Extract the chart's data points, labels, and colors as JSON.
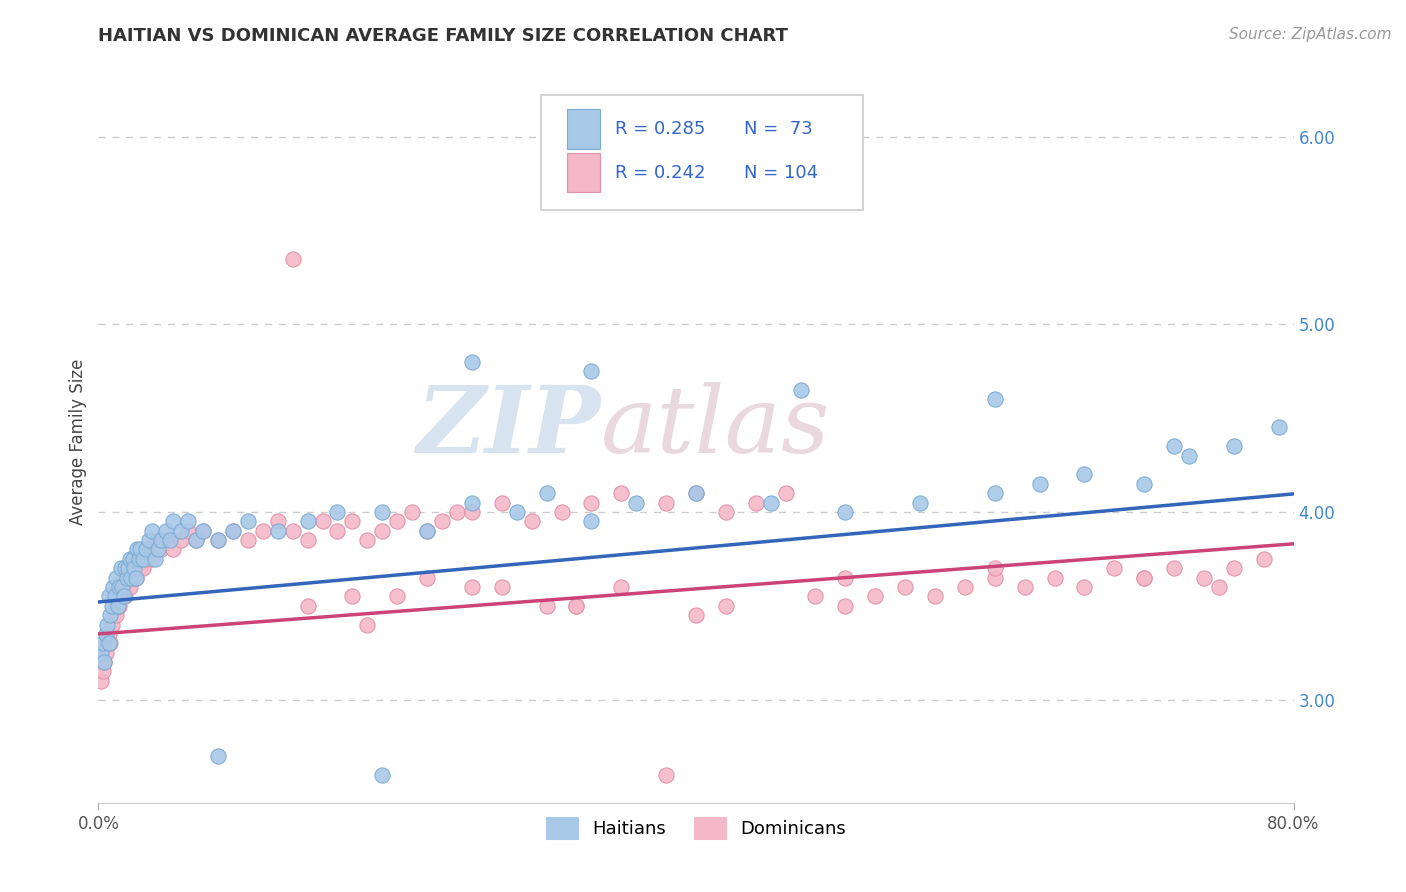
{
  "title": "HAITIAN VS DOMINICAN AVERAGE FAMILY SIZE CORRELATION CHART",
  "source_text": "Source: ZipAtlas.com",
  "ylabel": "Average Family Size",
  "xlim": [
    0.0,
    0.8
  ],
  "ylim": [
    2.45,
    6.3
  ],
  "haitian_R": 0.285,
  "haitian_N": 73,
  "dominican_R": 0.242,
  "dominican_N": 104,
  "haitian_color": "#a8c8e8",
  "haitian_edge_color": "#7aaad0",
  "dominican_color": "#f4b8c8",
  "dominican_edge_color": "#e090a8",
  "haitian_line_color": "#3366bb",
  "dominican_line_color": "#cc4477",
  "title_color": "#333333",
  "axis_tick_color": "#4488cc",
  "legend_text_color": "#3366cc",
  "grid_color": "#cccccc",
  "watermark_zip_color": "#c8d8e8",
  "watermark_atlas_color": "#d8c8d0",
  "haitian_trend_intercept": 3.52,
  "haitian_trend_slope": 0.72,
  "dominican_trend_intercept": 3.35,
  "dominican_trend_slope": 0.6,
  "haitian_x": [
    0.002,
    0.003,
    0.004,
    0.005,
    0.006,
    0.007,
    0.007,
    0.008,
    0.009,
    0.01,
    0.011,
    0.012,
    0.013,
    0.014,
    0.015,
    0.016,
    0.017,
    0.018,
    0.019,
    0.02,
    0.021,
    0.022,
    0.023,
    0.024,
    0.025,
    0.026,
    0.027,
    0.028,
    0.03,
    0.032,
    0.034,
    0.036,
    0.038,
    0.04,
    0.042,
    0.045,
    0.048,
    0.05,
    0.055,
    0.06,
    0.065,
    0.07,
    0.08,
    0.09,
    0.1,
    0.12,
    0.14,
    0.16,
    0.19,
    0.22,
    0.25,
    0.28,
    0.3,
    0.33,
    0.36,
    0.4,
    0.45,
    0.5,
    0.55,
    0.6,
    0.63,
    0.66,
    0.7,
    0.73,
    0.76,
    0.79,
    0.25,
    0.33,
    0.47,
    0.6,
    0.72,
    0.19,
    0.08
  ],
  "haitian_y": [
    3.25,
    3.3,
    3.2,
    3.35,
    3.4,
    3.3,
    3.55,
    3.45,
    3.5,
    3.6,
    3.55,
    3.65,
    3.5,
    3.6,
    3.7,
    3.6,
    3.55,
    3.7,
    3.65,
    3.7,
    3.75,
    3.65,
    3.75,
    3.7,
    3.65,
    3.8,
    3.75,
    3.8,
    3.75,
    3.8,
    3.85,
    3.9,
    3.75,
    3.8,
    3.85,
    3.9,
    3.85,
    3.95,
    3.9,
    3.95,
    3.85,
    3.9,
    3.85,
    3.9,
    3.95,
    3.9,
    3.95,
    4.0,
    4.0,
    3.9,
    4.05,
    4.0,
    4.1,
    3.95,
    4.05,
    4.1,
    4.05,
    4.0,
    4.05,
    4.1,
    4.15,
    4.2,
    4.15,
    4.3,
    4.35,
    4.45,
    4.8,
    4.75,
    4.65,
    4.6,
    4.35,
    2.6,
    2.7
  ],
  "dominican_x": [
    0.002,
    0.003,
    0.004,
    0.005,
    0.006,
    0.007,
    0.008,
    0.009,
    0.01,
    0.011,
    0.012,
    0.013,
    0.014,
    0.015,
    0.016,
    0.017,
    0.018,
    0.019,
    0.02,
    0.021,
    0.022,
    0.023,
    0.024,
    0.025,
    0.026,
    0.027,
    0.028,
    0.03,
    0.032,
    0.034,
    0.036,
    0.038,
    0.04,
    0.042,
    0.045,
    0.05,
    0.055,
    0.06,
    0.065,
    0.07,
    0.08,
    0.09,
    0.1,
    0.11,
    0.12,
    0.13,
    0.14,
    0.15,
    0.16,
    0.17,
    0.18,
    0.19,
    0.2,
    0.21,
    0.22,
    0.23,
    0.24,
    0.25,
    0.27,
    0.29,
    0.31,
    0.33,
    0.35,
    0.38,
    0.4,
    0.42,
    0.44,
    0.46,
    0.48,
    0.5,
    0.52,
    0.54,
    0.56,
    0.58,
    0.6,
    0.62,
    0.64,
    0.66,
    0.68,
    0.7,
    0.72,
    0.74,
    0.76,
    0.78,
    0.14,
    0.2,
    0.3,
    0.35,
    0.4,
    0.22,
    0.27,
    0.32,
    0.17,
    0.13,
    0.5,
    0.42,
    0.25,
    0.38,
    0.18,
    0.32,
    0.6,
    0.7,
    0.75
  ],
  "dominican_y": [
    3.1,
    3.15,
    3.2,
    3.25,
    3.3,
    3.35,
    3.3,
    3.4,
    3.45,
    3.5,
    3.45,
    3.55,
    3.5,
    3.6,
    3.55,
    3.65,
    3.55,
    3.6,
    3.65,
    3.6,
    3.7,
    3.65,
    3.7,
    3.65,
    3.75,
    3.7,
    3.75,
    3.7,
    3.75,
    3.8,
    3.75,
    3.8,
    3.85,
    3.8,
    3.85,
    3.8,
    3.85,
    3.9,
    3.85,
    3.9,
    3.85,
    3.9,
    3.85,
    3.9,
    3.95,
    3.9,
    3.85,
    3.95,
    3.9,
    3.95,
    3.85,
    3.9,
    3.95,
    4.0,
    3.9,
    3.95,
    4.0,
    4.0,
    4.05,
    3.95,
    4.0,
    4.05,
    4.1,
    4.05,
    4.1,
    4.0,
    4.05,
    4.1,
    3.55,
    3.5,
    3.55,
    3.6,
    3.55,
    3.6,
    3.65,
    3.6,
    3.65,
    3.6,
    3.7,
    3.65,
    3.7,
    3.65,
    3.7,
    3.75,
    3.5,
    3.55,
    3.5,
    3.6,
    3.45,
    3.65,
    3.6,
    3.5,
    3.55,
    5.35,
    3.65,
    3.5,
    3.6,
    2.6,
    3.4,
    3.5,
    3.7,
    3.65,
    3.6
  ]
}
